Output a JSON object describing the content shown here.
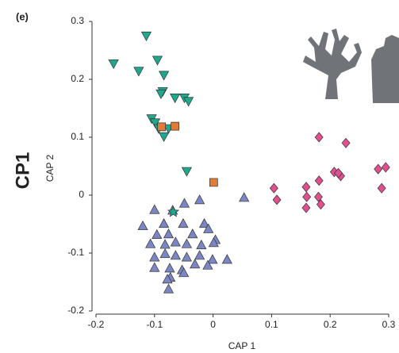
{
  "panel_label": "(e)",
  "side_label": "CP1",
  "chart_data": {
    "type": "scatter",
    "xlabel": "CAP 1",
    "ylabel": "CAP 2",
    "xlim": [
      -0.2,
      0.3
    ],
    "ylim": [
      -0.2,
      0.3
    ],
    "xticks": [
      -0.2,
      -0.1,
      0,
      0.1,
      0.2,
      0.3
    ],
    "yticks": [
      -0.2,
      -0.1,
      0,
      0.1,
      0.2,
      0.3
    ],
    "grid": false,
    "series": [
      {
        "marker": "triangle-down",
        "color": "#1fa88e",
        "x": [
          -0.114,
          -0.17,
          -0.095,
          -0.127,
          -0.084,
          -0.086,
          -0.089,
          -0.065,
          -0.049,
          -0.042,
          -0.105,
          -0.099,
          -0.093,
          -0.084,
          -0.076,
          -0.045
        ],
        "values": [
          0.275,
          0.227,
          0.233,
          0.214,
          0.207,
          0.179,
          0.175,
          0.168,
          0.168,
          0.162,
          0.132,
          0.125,
          0.115,
          0.101,
          0.115,
          0.041
        ]
      },
      {
        "marker": "square",
        "color": "#e07b39",
        "x": [
          -0.088,
          -0.065,
          0.001
        ],
        "values": [
          0.118,
          0.119,
          0.022
        ]
      },
      {
        "marker": "triangle-up",
        "color": "#7b86c4",
        "x": [
          -0.049,
          -0.023,
          0.053,
          -0.1,
          -0.069,
          -0.084,
          -0.051,
          -0.015,
          -0.12,
          -0.096,
          -0.076,
          -0.035,
          -0.008,
          0.004,
          -0.107,
          -0.082,
          -0.064,
          -0.045,
          -0.02,
          0.001,
          -0.1,
          -0.082,
          -0.064,
          -0.045,
          -0.023,
          -0.001,
          0.024,
          -0.1,
          -0.074,
          -0.053,
          -0.031,
          -0.009,
          -0.073,
          -0.05,
          -0.076,
          -0.078
        ],
        "values": [
          -0.014,
          -0.008,
          -0.004,
          -0.025,
          -0.026,
          -0.049,
          -0.049,
          -0.049,
          -0.053,
          -0.068,
          -0.067,
          -0.067,
          -0.058,
          -0.077,
          -0.084,
          -0.085,
          -0.081,
          -0.084,
          -0.086,
          -0.082,
          -0.107,
          -0.101,
          -0.104,
          -0.107,
          -0.104,
          -0.111,
          -0.111,
          -0.125,
          -0.126,
          -0.129,
          -0.119,
          -0.121,
          -0.142,
          -0.134,
          -0.162,
          -0.145
        ]
      },
      {
        "marker": "diamond",
        "color": "#e0508f",
        "x": [
          0.181,
          0.227,
          0.104,
          0.109,
          0.159,
          0.16,
          0.159,
          0.181,
          0.18,
          0.184,
          0.207,
          0.218,
          0.214,
          0.282,
          0.295,
          0.288
        ],
        "values": [
          0.1,
          0.09,
          0.012,
          -0.008,
          0.014,
          -0.003,
          -0.022,
          0.025,
          -0.003,
          -0.016,
          0.04,
          0.033,
          0.038,
          0.045,
          0.048,
          0.012
        ]
      },
      {
        "marker": "star",
        "color": "#1fa88e",
        "x": [
          -0.068
        ],
        "values": [
          -0.029
        ]
      }
    ]
  }
}
